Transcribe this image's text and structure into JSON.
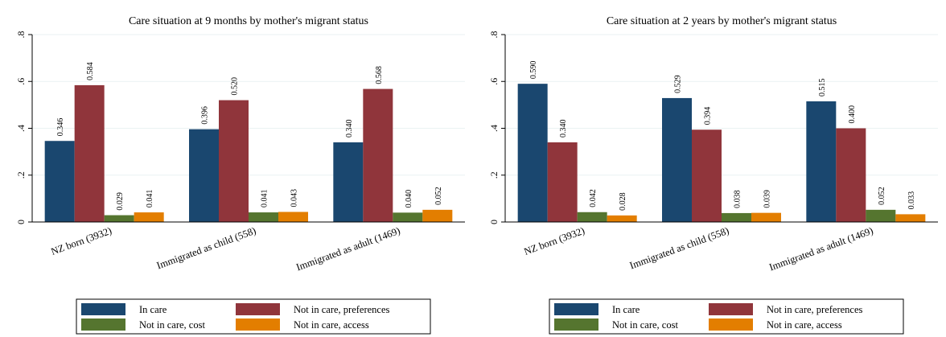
{
  "chart_data": [
    {
      "type": "bar",
      "title": "Care situation at 9 months by mother's migrant status",
      "categories": [
        "NZ born (3932)",
        "Immigrated as child (558)",
        "Immigrated as adult (1469)"
      ],
      "ylim": [
        0,
        0.8
      ],
      "yticks": [
        0,
        0.2,
        0.4,
        0.6,
        0.8
      ],
      "ytick_labels": [
        "0",
        ".2",
        ".4",
        ".6",
        ".8"
      ],
      "grid": true,
      "legend_position": "bottom",
      "series": [
        {
          "name": "In care",
          "color": "#1a476f",
          "values": [
            0.346,
            0.396,
            0.34
          ],
          "labels": [
            "0.346",
            "0.396",
            "0.340"
          ]
        },
        {
          "name": "Not in care, preferences",
          "color": "#90353b",
          "values": [
            0.584,
            0.52,
            0.568
          ],
          "labels": [
            "0.584",
            "0.520",
            "0.568"
          ]
        },
        {
          "name": "Not in care, cost",
          "color": "#55752f",
          "values": [
            0.029,
            0.041,
            0.04
          ],
          "labels": [
            "0.029",
            "0.041",
            "0.040"
          ]
        },
        {
          "name": "Not in care, access",
          "color": "#e37e00",
          "values": [
            0.041,
            0.043,
            0.052
          ],
          "labels": [
            "0.041",
            "0.043",
            "0.052"
          ]
        }
      ]
    },
    {
      "type": "bar",
      "title": "Care situation at 2 years by mother's migrant status",
      "categories": [
        "NZ born (3932)",
        "Immigrated as child (558)",
        "Immigrated as adult (1469)"
      ],
      "ylim": [
        0,
        0.8
      ],
      "yticks": [
        0,
        0.2,
        0.4,
        0.6,
        0.8
      ],
      "ytick_labels": [
        "0",
        ".2",
        ".4",
        ".6",
        ".8"
      ],
      "grid": true,
      "legend_position": "bottom",
      "series": [
        {
          "name": "In care",
          "color": "#1a476f",
          "values": [
            0.59,
            0.529,
            0.515
          ],
          "labels": [
            "0.590",
            "0.529",
            "0.515"
          ]
        },
        {
          "name": "Not in care, preferences",
          "color": "#90353b",
          "values": [
            0.34,
            0.394,
            0.4
          ],
          "labels": [
            "0.340",
            "0.394",
            "0.400"
          ]
        },
        {
          "name": "Not in care, cost",
          "color": "#55752f",
          "values": [
            0.042,
            0.038,
            0.052
          ],
          "labels": [
            "0.042",
            "0.038",
            "0.052"
          ]
        },
        {
          "name": "Not in care, access",
          "color": "#e37e00",
          "values": [
            0.028,
            0.039,
            0.033
          ],
          "labels": [
            "0.028",
            "0.039",
            "0.033"
          ]
        }
      ]
    }
  ]
}
